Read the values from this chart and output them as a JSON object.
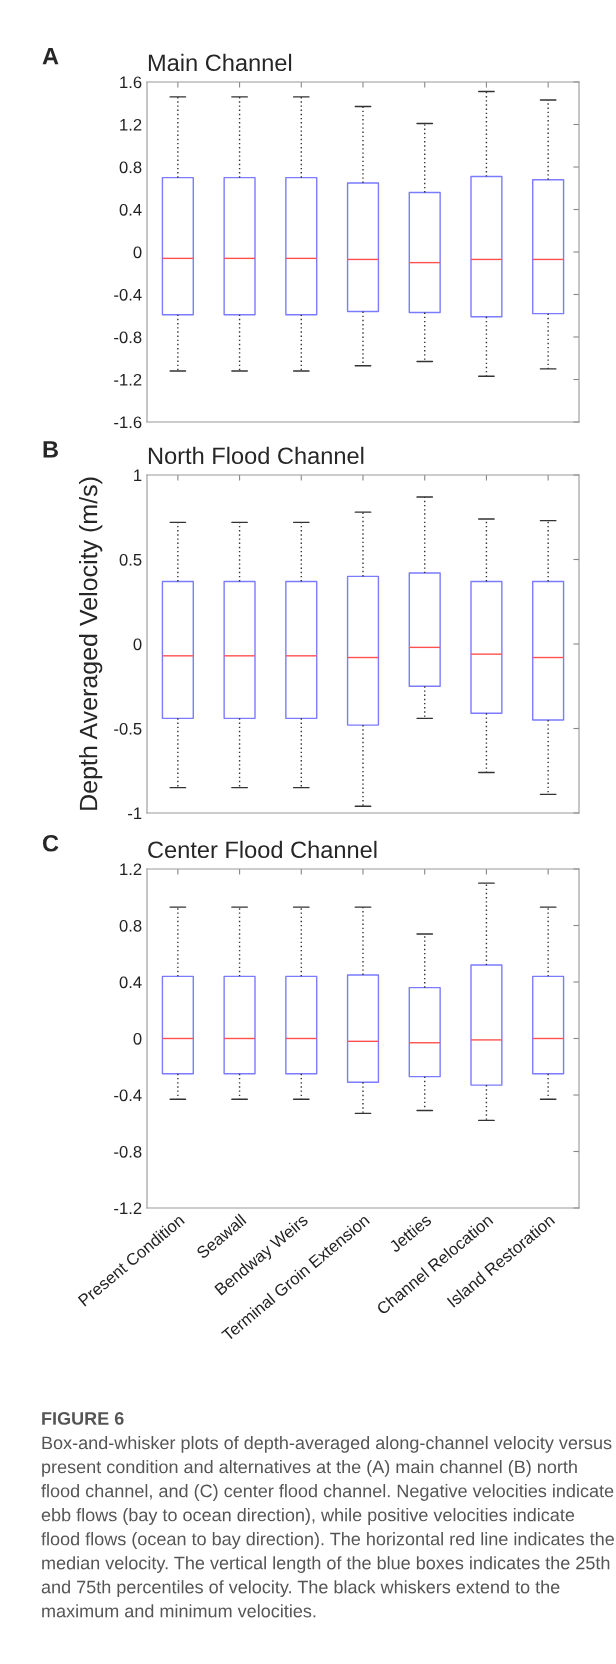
{
  "chart_data": [
    {
      "type": "box",
      "title": "Main Channel",
      "annotations": [
        "A"
      ],
      "categories": [
        null,
        null,
        null,
        null,
        null,
        null,
        null
      ],
      "ylim": [
        -1.6,
        1.6
      ],
      "yticks": [
        -1.6,
        -1.2,
        -0.8,
        -0.4,
        0,
        0.4,
        0.8,
        1.2,
        1.6
      ],
      "tick_labels": "y",
      "grid": false,
      "series": [
        {
          "color": "#7b7bff",
          "boxes": [
            {
              "low": -1.12,
              "q1": -0.59,
              "median": -0.06,
              "q3": 0.7,
              "high": 1.46
            },
            {
              "low": -1.12,
              "q1": -0.59,
              "median": -0.06,
              "q3": 0.7,
              "high": 1.46
            },
            {
              "low": -1.12,
              "q1": -0.59,
              "median": -0.06,
              "q3": 0.7,
              "high": 1.46
            },
            {
              "low": -1.07,
              "q1": -0.56,
              "median": -0.07,
              "q3": 0.65,
              "high": 1.37
            },
            {
              "low": -1.03,
              "q1": -0.57,
              "median": -0.1,
              "q3": 0.56,
              "high": 1.21
            },
            {
              "low": -1.17,
              "q1": -0.61,
              "median": -0.07,
              "q3": 0.71,
              "high": 1.51
            },
            {
              "low": -1.1,
              "q1": -0.58,
              "median": -0.07,
              "q3": 0.68,
              "high": 1.43
            }
          ]
        }
      ]
    },
    {
      "type": "box",
      "title": "North Flood Channel",
      "ylabel": "Depth Averaged Velocity (m/s)",
      "annotations": [
        "B"
      ],
      "categories": [
        null,
        null,
        null,
        null,
        null,
        null,
        null
      ],
      "ylim": [
        -1,
        1
      ],
      "yticks": [
        -1,
        -0.5,
        0,
        0.5,
        1
      ],
      "tick_labels": "y",
      "grid": false,
      "series": [
        {
          "color": "#7b7bff",
          "boxes": [
            {
              "low": -0.85,
              "q1": -0.44,
              "median": -0.07,
              "q3": 0.37,
              "high": 0.72
            },
            {
              "low": -0.85,
              "q1": -0.44,
              "median": -0.07,
              "q3": 0.37,
              "high": 0.72
            },
            {
              "low": -0.85,
              "q1": -0.44,
              "median": -0.07,
              "q3": 0.37,
              "high": 0.72
            },
            {
              "low": -0.96,
              "q1": -0.48,
              "median": -0.08,
              "q3": 0.4,
              "high": 0.78
            },
            {
              "low": -0.44,
              "q1": -0.25,
              "median": -0.02,
              "q3": 0.42,
              "high": 0.87
            },
            {
              "low": -0.76,
              "q1": -0.41,
              "median": -0.06,
              "q3": 0.37,
              "high": 0.74
            },
            {
              "low": -0.89,
              "q1": -0.45,
              "median": -0.08,
              "q3": 0.37,
              "high": 0.73
            }
          ]
        }
      ]
    },
    {
      "type": "box",
      "title": "Center Flood Channel",
      "annotations": [
        "C",
        "FIGURE 6",
        "Box-and-whisker plots of depth-averaged along-channel velocity versus present condition and alternatives at the (A) main channel (B) north flood channel, and (C) center flood channel. Negative velocities indicate ebb flows (bay to ocean direction), while positive velocities indicate flood flows (ocean to bay direction). The horizontal red line indicates the median velocity. The vertical length of the blue boxes indicates the 25th and 75th percentiles of velocity. The black whiskers extend to the maximum and minimum velocities."
      ],
      "categories": [
        "Present Condition",
        "Seawall",
        "Bendway Weirs",
        "Terminal Groin Extension",
        "Jetties",
        "Channel Relocation",
        "Island Restoration"
      ],
      "ylim": [
        -1.2,
        1.2
      ],
      "yticks": [
        -1.2,
        -0.8,
        -0.4,
        0,
        0.4,
        0.8,
        1.2
      ],
      "grid": false,
      "series": [
        {
          "color": "#7b7bff",
          "boxes": [
            {
              "low": -0.43,
              "q1": -0.25,
              "median": 0.0,
              "q3": 0.44,
              "high": 0.93
            },
            {
              "low": -0.43,
              "q1": -0.25,
              "median": 0.0,
              "q3": 0.44,
              "high": 0.93
            },
            {
              "low": -0.43,
              "q1": -0.25,
              "median": 0.0,
              "q3": 0.44,
              "high": 0.93
            },
            {
              "low": -0.53,
              "q1": -0.31,
              "median": -0.02,
              "q3": 0.45,
              "high": 0.93
            },
            {
              "low": -0.51,
              "q1": -0.27,
              "median": -0.03,
              "q3": 0.36,
              "high": 0.74
            },
            {
              "low": -0.58,
              "q1": -0.33,
              "median": -0.01,
              "q3": 0.52,
              "high": 1.1
            },
            {
              "low": -0.43,
              "q1": -0.25,
              "median": 0.0,
              "q3": 0.44,
              "high": 0.93
            }
          ]
        }
      ]
    }
  ]
}
